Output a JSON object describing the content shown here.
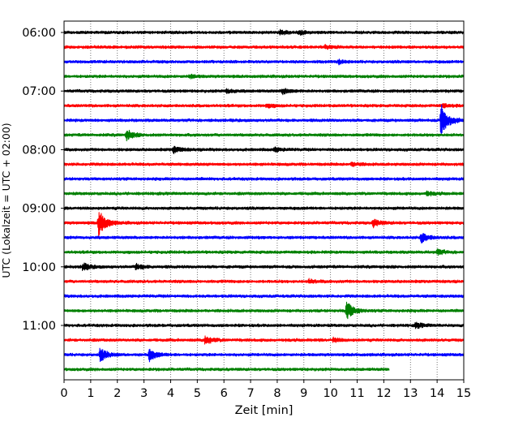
{
  "chart_data": {
    "type": "helicorder",
    "xlabel": "Zeit  [min]",
    "ylabel": "UTC (Lokalzeit = UTC + 02:00)",
    "xlim": [
      0,
      15
    ],
    "x_ticks": [
      0,
      1,
      2,
      3,
      4,
      5,
      6,
      7,
      8,
      9,
      10,
      11,
      12,
      13,
      14,
      15
    ],
    "grid": "vertical dotted lines at each minute",
    "start_time": "06:00",
    "minutes_per_line": 15,
    "line_count": 24,
    "y_tick_labels": [
      "06:00",
      "07:00",
      "08:00",
      "09:00",
      "10:00",
      "11:00"
    ],
    "y_tick_line_indices": [
      0,
      4,
      8,
      12,
      16,
      20
    ],
    "colors": [
      "#000000",
      "#ff0000",
      "#0000ff",
      "#008000"
    ],
    "last_line_end_min": 12.2,
    "events": [
      {
        "line": 0,
        "time_min": 8.1,
        "amplitude": 0.35
      },
      {
        "line": 0,
        "time_min": 8.8,
        "amplitude": 0.3
      },
      {
        "line": 1,
        "time_min": 9.8,
        "amplitude": 0.25
      },
      {
        "line": 2,
        "time_min": 10.3,
        "amplitude": 0.25
      },
      {
        "line": 3,
        "time_min": 4.7,
        "amplitude": 0.25
      },
      {
        "line": 4,
        "time_min": 8.2,
        "amplitude": 0.45
      },
      {
        "line": 4,
        "time_min": 6.1,
        "amplitude": 0.3
      },
      {
        "line": 5,
        "time_min": 7.6,
        "amplitude": 0.3
      },
      {
        "line": 5,
        "time_min": 14.2,
        "amplitude": 0.3
      },
      {
        "line": 6,
        "time_min": 14.15,
        "amplitude": 2.8
      },
      {
        "line": 7,
        "time_min": 2.35,
        "amplitude": 0.8
      },
      {
        "line": 8,
        "time_min": 4.1,
        "amplitude": 0.55
      },
      {
        "line": 8,
        "time_min": 7.9,
        "amplitude": 0.3
      },
      {
        "line": 9,
        "time_min": 10.8,
        "amplitude": 0.3
      },
      {
        "line": 11,
        "time_min": 13.6,
        "amplitude": 0.3
      },
      {
        "line": 13,
        "time_min": 1.3,
        "amplitude": 2.2
      },
      {
        "line": 13,
        "time_min": 11.6,
        "amplitude": 0.6
      },
      {
        "line": 14,
        "time_min": 13.4,
        "amplitude": 0.8
      },
      {
        "line": 15,
        "time_min": 14.0,
        "amplitude": 0.4
      },
      {
        "line": 16,
        "time_min": 0.7,
        "amplitude": 0.55
      },
      {
        "line": 16,
        "time_min": 2.7,
        "amplitude": 0.45
      },
      {
        "line": 17,
        "time_min": 9.2,
        "amplitude": 0.3
      },
      {
        "line": 19,
        "time_min": 10.6,
        "amplitude": 1.5
      },
      {
        "line": 20,
        "time_min": 13.2,
        "amplitude": 0.4
      },
      {
        "line": 21,
        "time_min": 5.3,
        "amplitude": 0.7
      },
      {
        "line": 21,
        "time_min": 10.1,
        "amplitude": 0.3
      },
      {
        "line": 22,
        "time_min": 1.35,
        "amplitude": 1.0
      },
      {
        "line": 22,
        "time_min": 3.2,
        "amplitude": 0.9
      }
    ]
  }
}
